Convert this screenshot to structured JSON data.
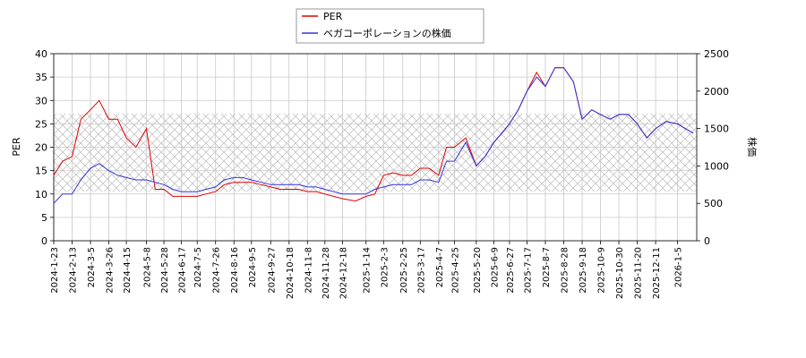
{
  "chart_data": {
    "type": "line",
    "y_label": "PER",
    "y2_label": "株価",
    "x": [
      "2024-1-23",
      "2024-2-2",
      "2024-2-13",
      "2024-2-23",
      "2024-3-5",
      "2024-3-15",
      "2024-3-26",
      "2024-4-5",
      "2024-4-15",
      "2024-4-26",
      "2024-5-8",
      "2024-5-18",
      "2024-5-28",
      "2024-6-7",
      "2024-6-17",
      "2024-6-26",
      "2024-7-5",
      "2024-7-15",
      "2024-7-26",
      "2024-8-5",
      "2024-8-16",
      "2024-8-26",
      "2024-9-5",
      "2024-9-16",
      "2024-9-27",
      "2024-10-8",
      "2024-10-18",
      "2024-10-29",
      "2024-11-8",
      "2024-11-18",
      "2024-11-28",
      "2024-12-8",
      "2024-12-18",
      "2025-1-2",
      "2025-1-14",
      "2025-1-24",
      "2025-2-3",
      "2025-2-14",
      "2025-2-25",
      "2025-3-7",
      "2025-3-17",
      "2025-3-27",
      "2025-4-7",
      "2025-4-16",
      "2025-4-25",
      "2025-5-8",
      "2025-5-20",
      "2025-5-30",
      "2025-6-9",
      "2025-6-18",
      "2025-6-27",
      "2025-7-7",
      "2025-7-17",
      "2025-7-28",
      "2025-8-7",
      "2025-8-18",
      "2025-8-28",
      "2025-9-8",
      "2025-9-18",
      "2025-9-29",
      "2025-10-9",
      "2025-10-20",
      "2025-10-30",
      "2025-11-10",
      "2025-11-20",
      "2025-12-1",
      "2025-12-11",
      "2025-12-23",
      "2026-1-5",
      "2026-1-23"
    ],
    "series": [
      {
        "name": "PER",
        "color": "#dd0000",
        "values": [
          14,
          17,
          18,
          26,
          28,
          30,
          26,
          26,
          22,
          20,
          24,
          11,
          11,
          9.5,
          9.5,
          9.5,
          9.5,
          10,
          10.5,
          12,
          12.5,
          12.5,
          12.5,
          12,
          11.5,
          11,
          11,
          11,
          10.5,
          10.5,
          10,
          9.5,
          9,
          8.5,
          9.5,
          10,
          14,
          14.5,
          14,
          14,
          15.5,
          15.5,
          14,
          20,
          20,
          22,
          16,
          18,
          21,
          23,
          25,
          28,
          32,
          36,
          33,
          37,
          37,
          34,
          26,
          28,
          27,
          26,
          27,
          27,
          25,
          22,
          24,
          25.5,
          25,
          23
        ]
      },
      {
        "name": "ベガコーポレーションの株価",
        "color": "#3333dd",
        "axis": "y2",
        "values": [
          500,
          625,
          625,
          813,
          969,
          1031,
          938,
          875,
          844,
          813,
          813,
          781,
          750,
          688,
          656,
          656,
          656,
          688,
          719,
          813,
          844,
          844,
          813,
          781,
          750,
          750,
          750,
          750,
          719,
          719,
          688,
          656,
          625,
          625,
          625,
          688,
          719,
          750,
          750,
          750,
          813,
          813,
          781,
          1063,
          1063,
          1313,
          1000,
          1125,
          1313,
          1438,
          1563,
          1750,
          2000,
          2188,
          2063,
          2313,
          2313,
          2125,
          1625,
          1750,
          1688,
          1625,
          1688,
          1688,
          1563,
          1375,
          1500,
          1594,
          1563,
          1438
        ]
      }
    ],
    "hatch_range": [
      10.5,
      27.2
    ],
    "xlim": [
      "2024-1-23",
      "2026-1-27"
    ],
    "xticks": [
      "2024-1-23",
      "2024-2-13",
      "2024-3-5",
      "2024-3-26",
      "2024-4-15",
      "2024-5-8",
      "2024-5-28",
      "2024-6-17",
      "2024-7-5",
      "2024-7-26",
      "2024-8-16",
      "2024-9-5",
      "2024-9-27",
      "2024-10-18",
      "2024-11-8",
      "2024-11-28",
      "2024-12-18",
      "2025-1-14",
      "2025-2-3",
      "2025-2-25",
      "2025-3-17",
      "2025-4-7",
      "2025-4-25",
      "2025-5-20",
      "2025-6-9",
      "2025-6-27",
      "2025-7-17",
      "2025-8-7",
      "2025-8-28",
      "2025-9-18",
      "2025-10-9",
      "2025-10-30",
      "2025-11-20",
      "2025-12-11",
      "2026-1-5"
    ],
    "ylim": [
      0,
      40
    ],
    "yticks": [
      0,
      5,
      10,
      15,
      20,
      25,
      30,
      35,
      40
    ],
    "y2lim": [
      0,
      2500
    ],
    "y2ticks": [
      0,
      500,
      1000,
      1500,
      2000,
      2500
    ],
    "grid": true,
    "legend": "top"
  }
}
